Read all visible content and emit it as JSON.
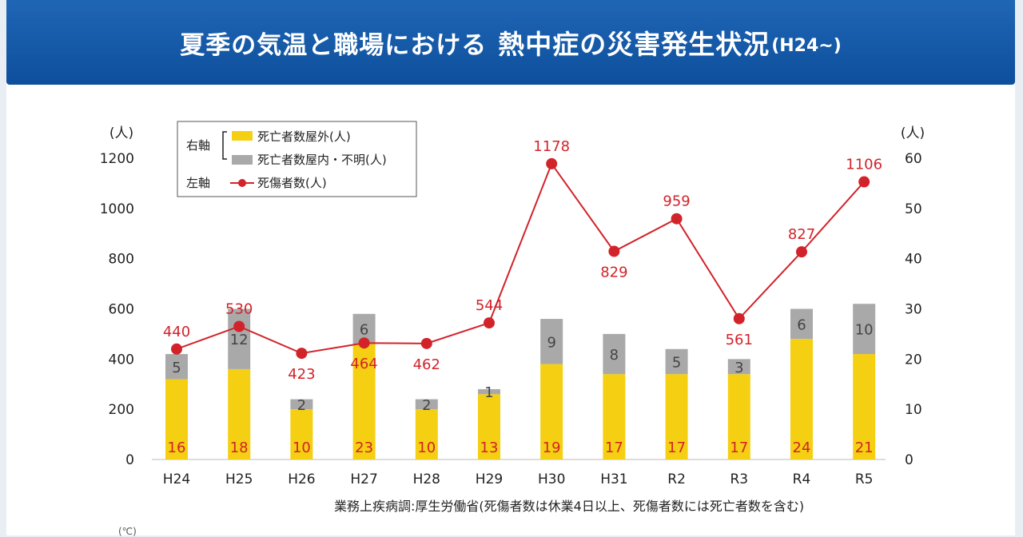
{
  "banner": {
    "title_part1": "夏季の気温と職場における",
    "title_part2": "熱中症の災害発生状況",
    "title_part3": "(H24~)"
  },
  "chart_data": {
    "type": "bar",
    "categories": [
      "H24",
      "H25",
      "H26",
      "H27",
      "H28",
      "H29",
      "H30",
      "H31",
      "R2",
      "R3",
      "R4",
      "R5"
    ],
    "series": [
      {
        "name": "死亡者数屋外(人)",
        "axis": "right",
        "kind": "bar-stacked",
        "color": "#f5cf12",
        "values": [
          16,
          18,
          10,
          23,
          10,
          13,
          19,
          17,
          17,
          17,
          24,
          21
        ]
      },
      {
        "name": "死亡者数屋内・不明(人)",
        "axis": "right",
        "kind": "bar-stacked",
        "color": "#a9a9a9",
        "values": [
          5,
          12,
          2,
          6,
          2,
          1,
          9,
          8,
          5,
          3,
          6,
          10
        ]
      },
      {
        "name": "死傷者数(人)",
        "axis": "left",
        "kind": "line",
        "color": "#d2232a",
        "values": [
          440,
          530,
          423,
          464,
          462,
          544,
          1178,
          829,
          959,
          561,
          827,
          1106
        ]
      }
    ],
    "left_axis": {
      "unit": "(人)",
      "ylim": [
        0,
        1200
      ],
      "ticks": [
        0,
        200,
        400,
        600,
        800,
        1000,
        1200
      ]
    },
    "right_axis": {
      "unit": "(人)",
      "ylim": [
        0,
        60
      ],
      "ticks": [
        0,
        10,
        20,
        30,
        40,
        50,
        60
      ]
    },
    "legend": {
      "placement": "top-left",
      "right_axis_label": "右軸",
      "left_axis_label": "左軸"
    },
    "grid": false
  },
  "source_note": "業務上疾病調:厚生労働省(死傷者数は休業4日以上、死傷者数には死亡者数を含む)",
  "fragment_text": "(℃)"
}
